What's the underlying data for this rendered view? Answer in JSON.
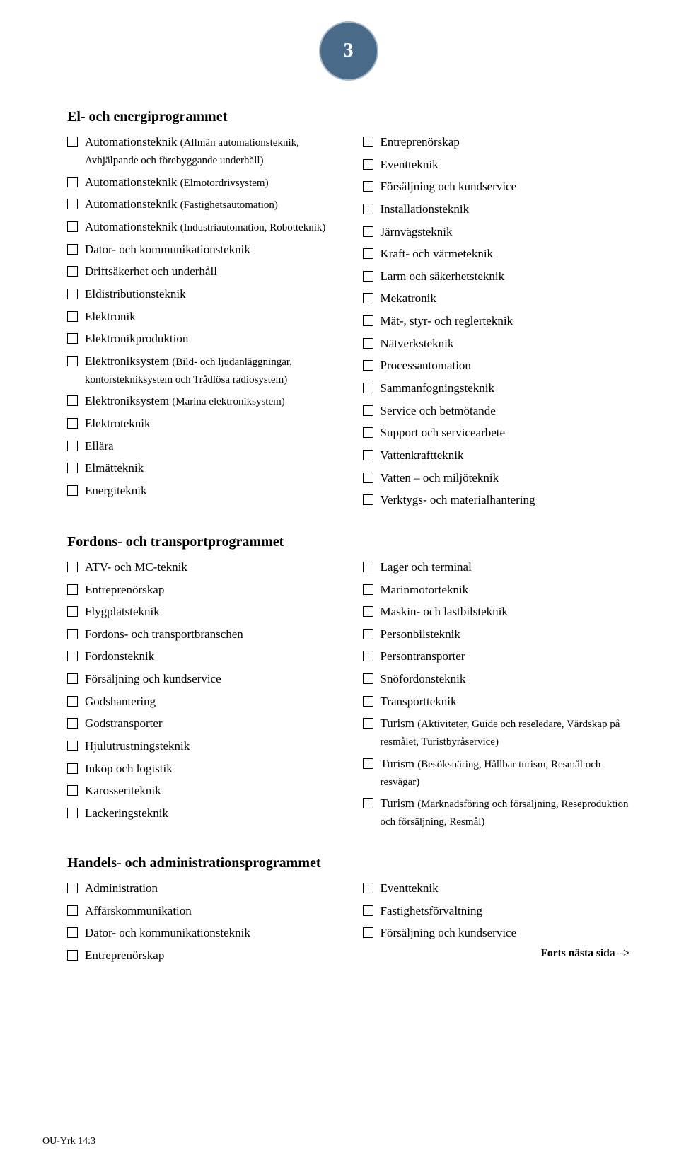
{
  "page_number": "3",
  "footer_code": "OU-Yrk 14:3",
  "sections": [
    {
      "heading": "El- och energiprogrammet",
      "left": [
        "Automationsteknik <span class=\"paren\">(Allmän automationsteknik, Avhjälpande och förebyggande underhåll)</span>",
        "Automationsteknik <span class=\"paren\">(Elmotordrivsystem)</span>",
        "Automationsteknik <span class=\"paren\">(Fastighetsautomation)</span>",
        "Automationsteknik <span class=\"paren\">(Industriautomation, Robotteknik)</span>",
        "Dator- och kommunikationsteknik",
        "Driftsäkerhet och underhåll",
        "Eldistributionsteknik",
        "Elektronik",
        "Elektronikproduktion",
        "Elektroniksystem <span class=\"paren\">(Bild- och ljudanläggningar, kontorstekniksystem och Trådlösa radiosystem)</span>",
        "Elektroniksystem <span class=\"paren\">(Marina elektroniksystem)</span>",
        "Elektroteknik",
        "Ellära",
        "Elmätteknik",
        "Energiteknik"
      ],
      "right": [
        "Entreprenörskap",
        "Eventteknik",
        "Försäljning och kundservice",
        "Installationsteknik",
        "Järnvägsteknik",
        "Kraft- och värmeteknik",
        "Larm och säkerhetsteknik",
        "Mekatronik",
        "Mät-, styr- och reglerteknik",
        "Nätverksteknik",
        "Processautomation",
        "Sammanfogningsteknik",
        "Service och betmötande",
        "Support och servicearbete",
        "Vattenkraftteknik",
        "Vatten – och miljöteknik",
        "Verktygs- och materialhantering"
      ]
    },
    {
      "heading": "Fordons- och transportprogrammet",
      "left": [
        "ATV- och MC-teknik",
        "Entreprenörskap",
        "Flygplatsteknik",
        "Fordons- och transportbranschen",
        "Fordonsteknik",
        "Försäljning och kundservice",
        "Godshantering",
        "Godstransporter",
        "Hjulutrustningsteknik",
        "Inköp och logistik",
        "Karosseriteknik",
        "Lackeringsteknik"
      ],
      "right": [
        "Lager och terminal",
        "Marinmotorteknik",
        "Maskin- och lastbilsteknik",
        "Personbilsteknik",
        "Persontransporter",
        "Snöfordonsteknik",
        "Transportteknik",
        "Turism <span class=\"paren\">(Aktiviteter, Guide och reseledare, Värdskap på resmålet, Turistbyråservice)</span>",
        "Turism <span class=\"paren\">(Besöksnäring, Hållbar turism, Resmål och resvägar)</span>",
        "Turism <span class=\"paren\">(Marknadsföring och försäljning, Reseproduktion och försäljning, Resmål)</span>"
      ]
    },
    {
      "heading": "Handels- och administrationsprogrammet",
      "left": [
        "Administration",
        "Affärskommunikation",
        "Dator- och kommunikationsteknik",
        "Entreprenörskap"
      ],
      "right": [
        "Eventteknik",
        "Fastighetsförvaltning",
        "Försäljning och kundservice"
      ],
      "forts": "Forts nästa sida –>"
    }
  ]
}
